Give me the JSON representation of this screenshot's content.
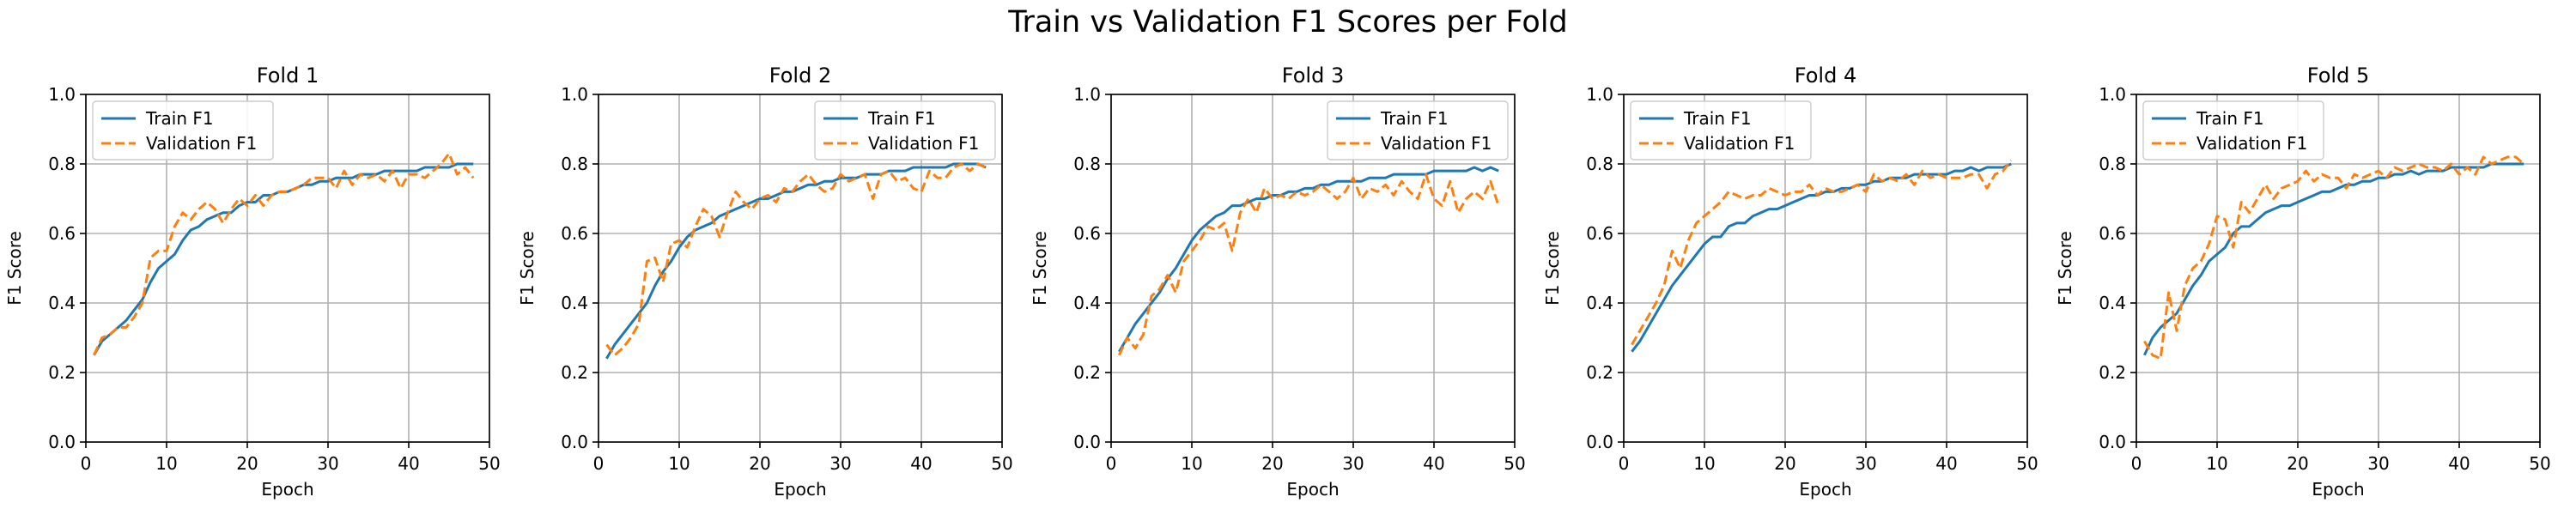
{
  "figure": {
    "title": "Train vs Validation F1 Scores per Fold"
  },
  "legend_labels": [
    "Train F1",
    "Validation F1"
  ],
  "colors": {
    "train": "#1f77b4",
    "validation": "#ff7f0e",
    "grid": "#b0b0b0"
  },
  "chart_data": [
    {
      "type": "line",
      "title": "Fold 1",
      "xlabel": "Epoch",
      "ylabel": "F1 Score",
      "xlim": [
        0,
        50
      ],
      "ylim": [
        0,
        1
      ],
      "xticks": [
        0,
        10,
        20,
        30,
        40,
        50
      ],
      "yticks": [
        0.0,
        0.2,
        0.4,
        0.6,
        0.8,
        1.0
      ],
      "grid": true,
      "legend": "top-left",
      "series": [
        {
          "name": "Train F1",
          "style": "solid",
          "color": "#1f77b4",
          "values": [
            0.25,
            0.29,
            0.31,
            0.33,
            0.35,
            0.38,
            0.41,
            0.46,
            0.5,
            0.52,
            0.54,
            0.58,
            0.61,
            0.62,
            0.64,
            0.65,
            0.66,
            0.66,
            0.68,
            0.69,
            0.69,
            0.71,
            0.71,
            0.72,
            0.72,
            0.73,
            0.74,
            0.74,
            0.75,
            0.75,
            0.76,
            0.76,
            0.76,
            0.77,
            0.77,
            0.77,
            0.78,
            0.78,
            0.78,
            0.78,
            0.78,
            0.79,
            0.79,
            0.79,
            0.79,
            0.8,
            0.8,
            0.8
          ]
        },
        {
          "name": "Validation F1",
          "style": "dashed",
          "color": "#ff7f0e",
          "values": [
            0.25,
            0.3,
            0.31,
            0.33,
            0.33,
            0.36,
            0.4,
            0.53,
            0.55,
            0.55,
            0.62,
            0.66,
            0.64,
            0.67,
            0.69,
            0.67,
            0.63,
            0.67,
            0.7,
            0.68,
            0.71,
            0.68,
            0.71,
            0.72,
            0.72,
            0.73,
            0.74,
            0.76,
            0.76,
            0.76,
            0.73,
            0.78,
            0.74,
            0.77,
            0.76,
            0.77,
            0.75,
            0.78,
            0.73,
            0.77,
            0.77,
            0.76,
            0.78,
            0.8,
            0.83,
            0.77,
            0.79,
            0.76
          ]
        }
      ]
    },
    {
      "type": "line",
      "title": "Fold 2",
      "xlabel": "Epoch",
      "ylabel": "F1 Score",
      "xlim": [
        0,
        50
      ],
      "ylim": [
        0,
        1
      ],
      "xticks": [
        0,
        10,
        20,
        30,
        40,
        50
      ],
      "yticks": [
        0.0,
        0.2,
        0.4,
        0.6,
        0.8,
        1.0
      ],
      "grid": true,
      "legend": "top-right",
      "series": [
        {
          "name": "Train F1",
          "style": "solid",
          "color": "#1f77b4",
          "values": [
            0.24,
            0.28,
            0.31,
            0.34,
            0.37,
            0.4,
            0.45,
            0.49,
            0.52,
            0.56,
            0.59,
            0.61,
            0.62,
            0.63,
            0.65,
            0.66,
            0.67,
            0.68,
            0.69,
            0.7,
            0.7,
            0.71,
            0.72,
            0.72,
            0.73,
            0.74,
            0.74,
            0.75,
            0.75,
            0.76,
            0.76,
            0.76,
            0.77,
            0.77,
            0.77,
            0.78,
            0.78,
            0.78,
            0.79,
            0.79,
            0.79,
            0.79,
            0.79,
            0.8,
            0.8,
            0.8,
            0.8,
            0.79
          ]
        },
        {
          "name": "Validation F1",
          "style": "dashed",
          "color": "#ff7f0e",
          "values": [
            0.28,
            0.25,
            0.27,
            0.3,
            0.34,
            0.52,
            0.53,
            0.46,
            0.57,
            0.58,
            0.56,
            0.62,
            0.67,
            0.65,
            0.59,
            0.66,
            0.72,
            0.69,
            0.67,
            0.7,
            0.71,
            0.69,
            0.73,
            0.72,
            0.75,
            0.77,
            0.74,
            0.72,
            0.73,
            0.77,
            0.75,
            0.76,
            0.77,
            0.7,
            0.77,
            0.78,
            0.75,
            0.76,
            0.73,
            0.72,
            0.78,
            0.76,
            0.76,
            0.79,
            0.8,
            0.78,
            0.8,
            0.79
          ]
        }
      ]
    },
    {
      "type": "line",
      "title": "Fold 3",
      "xlabel": "Epoch",
      "ylabel": "F1 Score",
      "xlim": [
        0,
        50
      ],
      "ylim": [
        0,
        1
      ],
      "xticks": [
        0,
        10,
        20,
        30,
        40,
        50
      ],
      "yticks": [
        0.0,
        0.2,
        0.4,
        0.6,
        0.8,
        1.0
      ],
      "grid": true,
      "legend": "top-right",
      "series": [
        {
          "name": "Train F1",
          "style": "solid",
          "color": "#1f77b4",
          "values": [
            0.26,
            0.3,
            0.34,
            0.37,
            0.4,
            0.43,
            0.47,
            0.5,
            0.54,
            0.58,
            0.61,
            0.63,
            0.65,
            0.66,
            0.68,
            0.68,
            0.69,
            0.7,
            0.7,
            0.71,
            0.71,
            0.72,
            0.72,
            0.73,
            0.73,
            0.74,
            0.74,
            0.75,
            0.75,
            0.75,
            0.75,
            0.76,
            0.76,
            0.76,
            0.77,
            0.77,
            0.77,
            0.77,
            0.77,
            0.78,
            0.78,
            0.78,
            0.78,
            0.78,
            0.79,
            0.78,
            0.79,
            0.78
          ]
        },
        {
          "name": "Validation F1",
          "style": "dashed",
          "color": "#ff7f0e",
          "values": [
            0.25,
            0.3,
            0.27,
            0.31,
            0.42,
            0.44,
            0.48,
            0.43,
            0.52,
            0.55,
            0.58,
            0.62,
            0.61,
            0.63,
            0.55,
            0.66,
            0.7,
            0.66,
            0.73,
            0.7,
            0.71,
            0.7,
            0.72,
            0.71,
            0.72,
            0.74,
            0.72,
            0.7,
            0.72,
            0.76,
            0.7,
            0.73,
            0.72,
            0.74,
            0.71,
            0.75,
            0.72,
            0.7,
            0.77,
            0.7,
            0.68,
            0.75,
            0.66,
            0.7,
            0.72,
            0.7,
            0.75,
            0.68
          ]
        }
      ]
    },
    {
      "type": "line",
      "title": "Fold 4",
      "xlabel": "Epoch",
      "ylabel": "F1 Score",
      "xlim": [
        0,
        50
      ],
      "ylim": [
        0,
        1
      ],
      "xticks": [
        0,
        10,
        20,
        30,
        40,
        50
      ],
      "yticks": [
        0.0,
        0.2,
        0.4,
        0.6,
        0.8,
        1.0
      ],
      "grid": true,
      "legend": "top-left",
      "series": [
        {
          "name": "Train F1",
          "style": "solid",
          "color": "#1f77b4",
          "values": [
            0.26,
            0.29,
            0.33,
            0.37,
            0.41,
            0.45,
            0.48,
            0.51,
            0.54,
            0.57,
            0.59,
            0.59,
            0.62,
            0.63,
            0.63,
            0.65,
            0.66,
            0.67,
            0.67,
            0.68,
            0.69,
            0.7,
            0.71,
            0.71,
            0.72,
            0.72,
            0.73,
            0.73,
            0.74,
            0.74,
            0.75,
            0.75,
            0.76,
            0.76,
            0.76,
            0.77,
            0.77,
            0.77,
            0.77,
            0.77,
            0.78,
            0.78,
            0.79,
            0.78,
            0.79,
            0.79,
            0.79,
            0.8
          ]
        },
        {
          "name": "Validation F1",
          "style": "dashed",
          "color": "#ff7f0e",
          "values": [
            0.28,
            0.32,
            0.36,
            0.4,
            0.45,
            0.55,
            0.5,
            0.58,
            0.63,
            0.65,
            0.67,
            0.69,
            0.72,
            0.71,
            0.7,
            0.71,
            0.71,
            0.73,
            0.72,
            0.71,
            0.72,
            0.72,
            0.74,
            0.71,
            0.73,
            0.72,
            0.72,
            0.73,
            0.74,
            0.72,
            0.77,
            0.75,
            0.76,
            0.75,
            0.77,
            0.74,
            0.78,
            0.76,
            0.77,
            0.76,
            0.76,
            0.76,
            0.77,
            0.77,
            0.73,
            0.77,
            0.78,
            0.81
          ]
        }
      ]
    },
    {
      "type": "line",
      "title": "Fold 5",
      "xlabel": "Epoch",
      "ylabel": "F1 Score",
      "xlim": [
        0,
        50
      ],
      "ylim": [
        0,
        1
      ],
      "xticks": [
        0,
        10,
        20,
        30,
        40,
        50
      ],
      "yticks": [
        0.0,
        0.2,
        0.4,
        0.6,
        0.8,
        1.0
      ],
      "grid": true,
      "legend": "top-left",
      "series": [
        {
          "name": "Train F1",
          "style": "solid",
          "color": "#1f77b4",
          "values": [
            0.25,
            0.3,
            0.33,
            0.35,
            0.37,
            0.41,
            0.45,
            0.48,
            0.52,
            0.54,
            0.56,
            0.6,
            0.62,
            0.62,
            0.64,
            0.66,
            0.67,
            0.68,
            0.68,
            0.69,
            0.7,
            0.71,
            0.72,
            0.72,
            0.73,
            0.74,
            0.74,
            0.75,
            0.75,
            0.76,
            0.76,
            0.77,
            0.77,
            0.78,
            0.77,
            0.78,
            0.78,
            0.78,
            0.79,
            0.79,
            0.79,
            0.79,
            0.79,
            0.8,
            0.8,
            0.8,
            0.8,
            0.8
          ]
        },
        {
          "name": "Validation F1",
          "style": "dashed",
          "color": "#ff7f0e",
          "values": [
            0.29,
            0.25,
            0.24,
            0.43,
            0.32,
            0.45,
            0.5,
            0.52,
            0.57,
            0.65,
            0.64,
            0.56,
            0.69,
            0.66,
            0.7,
            0.74,
            0.7,
            0.73,
            0.74,
            0.75,
            0.78,
            0.75,
            0.77,
            0.76,
            0.76,
            0.73,
            0.77,
            0.76,
            0.77,
            0.78,
            0.76,
            0.79,
            0.78,
            0.79,
            0.8,
            0.79,
            0.79,
            0.78,
            0.8,
            0.77,
            0.79,
            0.77,
            0.82,
            0.8,
            0.81,
            0.82,
            0.82,
            0.8
          ]
        }
      ]
    }
  ]
}
